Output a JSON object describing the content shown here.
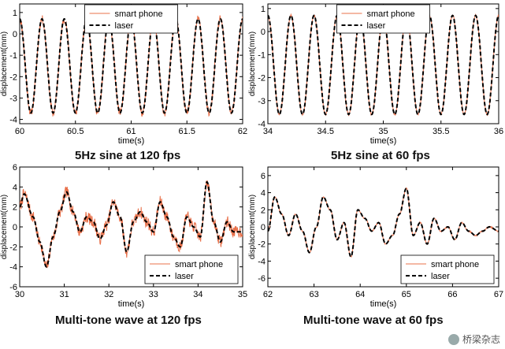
{
  "captions": [
    "5Hz sine at 120 fps",
    "5Hz sine at 60 fps",
    "Multi-tone wave at 120 fps",
    "Multi-tone wave at 60 fps"
  ],
  "watermark": "桥梁杂志",
  "colors": {
    "smart_phone": "#e8704a",
    "laser": "#000000"
  },
  "chart_data": [
    {
      "type": "line",
      "xlabel": "time(s)",
      "ylabel": "displacement(mm)",
      "xlim": [
        60,
        62
      ],
      "ylim": [
        -4.2,
        1.4
      ],
      "xticks": [
        60,
        60.5,
        61,
        61.5,
        62
      ],
      "xtick_labels": [
        "60",
        "60.5",
        "61",
        "61.5",
        "62"
      ],
      "yticks": [
        -4,
        -3,
        -2,
        -1,
        0,
        1
      ],
      "ytick_labels": [
        "-4",
        "-3",
        "-2",
        "-1",
        "0",
        "1"
      ],
      "legend": {
        "placement": "top-center",
        "entries": [
          "smart phone",
          "laser"
        ]
      },
      "signal": {
        "kind": "sine",
        "freq_hz": 5,
        "max": 0.7,
        "min": -3.7,
        "noise": 0.18
      },
      "series": [
        {
          "name": "smart phone",
          "color": "#e8704a",
          "style": "solid"
        },
        {
          "name": "laser",
          "color": "#000000",
          "style": "dashed"
        }
      ]
    },
    {
      "type": "line",
      "xlabel": "time(s)",
      "ylabel": "displacement(mm)",
      "xlim": [
        34,
        36
      ],
      "ylim": [
        -4,
        1.2
      ],
      "xticks": [
        34,
        34.5,
        35,
        35.5,
        36
      ],
      "xtick_labels": [
        "34",
        "34.5",
        "35",
        "35.5",
        "36"
      ],
      "yticks": [
        -4,
        -3,
        -2,
        -1,
        0,
        1
      ],
      "ytick_labels": [
        "-4",
        "-3",
        "-2",
        "-1",
        "0",
        "1"
      ],
      "legend": {
        "placement": "top-center",
        "entries": [
          "smart phone",
          "laser"
        ]
      },
      "signal": {
        "kind": "sine",
        "freq_hz": 5,
        "max": 0.7,
        "min": -3.6,
        "noise": 0.05
      },
      "series": [
        {
          "name": "smart phone",
          "color": "#e8704a",
          "style": "solid"
        },
        {
          "name": "laser",
          "color": "#000000",
          "style": "dashed"
        }
      ]
    },
    {
      "type": "line",
      "xlabel": "time(s)",
      "ylabel": "displacement(mm)",
      "xlim": [
        30,
        35
      ],
      "ylim": [
        -6,
        6
      ],
      "xticks": [
        30,
        31,
        32,
        33,
        34,
        35
      ],
      "xtick_labels": [
        "30",
        "31",
        "32",
        "33",
        "34",
        "35"
      ],
      "yticks": [
        -6,
        -4,
        -2,
        0,
        2,
        4,
        6
      ],
      "ytick_labels": [
        "-6",
        "-4",
        "-2",
        "0",
        "2",
        "4",
        "6"
      ],
      "legend": {
        "placement": "bottom-right",
        "entries": [
          "smart phone",
          "laser"
        ]
      },
      "signal": {
        "kind": "keypoints",
        "noise": 0.6,
        "seed": 7,
        "x": [
          30,
          30.1,
          30.3,
          30.45,
          30.6,
          30.75,
          30.9,
          31.05,
          31.2,
          31.35,
          31.5,
          31.65,
          31.8,
          31.95,
          32.1,
          32.25,
          32.4,
          32.55,
          32.7,
          32.85,
          33,
          33.15,
          33.3,
          33.45,
          33.6,
          33.75,
          33.9,
          34.05,
          34.2,
          34.35,
          34.5,
          34.65,
          34.8,
          35
        ],
        "y": [
          2,
          3.3,
          1,
          -1.5,
          -4,
          -1,
          1.5,
          3.5,
          1.5,
          -0.5,
          1,
          0.5,
          -1.2,
          0.2,
          2.5,
          1,
          -2.5,
          0.5,
          1.5,
          0.5,
          -0.5,
          2.5,
          1,
          -1,
          -2,
          1,
          0,
          -1,
          4.5,
          0.5,
          -1.5,
          0.5,
          -0.5,
          -0.5
        ]
      },
      "series": [
        {
          "name": "smart phone",
          "color": "#e8704a",
          "style": "solid"
        },
        {
          "name": "laser",
          "color": "#000000",
          "style": "dashed"
        }
      ]
    },
    {
      "type": "line",
      "xlabel": "time(s)",
      "ylabel": "displacement(mm)",
      "xlim": [
        62,
        67
      ],
      "ylim": [
        -7,
        7
      ],
      "xticks": [
        62,
        63,
        64,
        65,
        66,
        67
      ],
      "xtick_labels": [
        "62",
        "63",
        "64",
        "65",
        "66",
        "67"
      ],
      "yticks": [
        -6,
        -4,
        -2,
        0,
        2,
        4,
        6
      ],
      "ytick_labels": [
        "-6",
        "-4",
        "-2",
        "0",
        "2",
        "4",
        "6"
      ],
      "legend": {
        "placement": "bottom-right",
        "entries": [
          "smart phone",
          "laser"
        ]
      },
      "signal": {
        "kind": "keypoints",
        "noise": 0.08,
        "seed": 3,
        "x": [
          62,
          62.15,
          62.3,
          62.45,
          62.6,
          62.75,
          62.9,
          63.05,
          63.2,
          63.35,
          63.5,
          63.65,
          63.8,
          63.95,
          64.1,
          64.25,
          64.4,
          64.55,
          64.7,
          64.85,
          65,
          65.15,
          65.3,
          65.45,
          65.6,
          65.75,
          65.9,
          66.05,
          66.2,
          66.35,
          66.5,
          66.65,
          66.8,
          67
        ],
        "y": [
          -0.5,
          3.5,
          1.5,
          -1,
          1.5,
          -0.5,
          -3,
          0,
          3.5,
          2,
          -1.5,
          0.5,
          -3.5,
          2,
          1,
          -0.5,
          0.5,
          -2,
          -1,
          1.5,
          4.5,
          -1,
          0.5,
          -2,
          1,
          -0.5,
          0,
          -1.5,
          0.5,
          -0.5,
          -1,
          -0.5,
          0,
          -0.5
        ]
      },
      "series": [
        {
          "name": "smart phone",
          "color": "#e8704a",
          "style": "solid"
        },
        {
          "name": "laser",
          "color": "#000000",
          "style": "dashed"
        }
      ]
    }
  ]
}
